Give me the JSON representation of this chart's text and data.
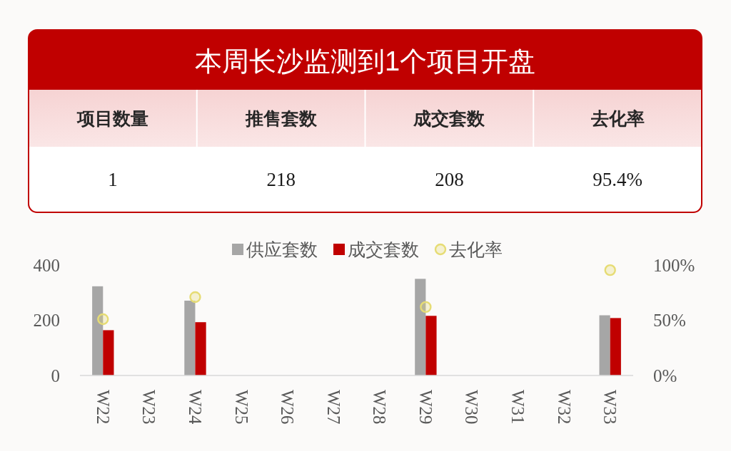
{
  "chart_data": [
    {
      "type": "other",
      "title": "本周长沙监测到1个项目开盘",
      "categories": [
        "项目数量",
        "推售套数",
        "成交套数",
        "去化率"
      ],
      "value_labels": [
        "1",
        "218",
        "208",
        "95.4%"
      ]
    },
    {
      "type": "bar",
      "categories": [
        "W22",
        "W23",
        "W24",
        "W25",
        "W26",
        "W27",
        "W28",
        "W29",
        "W30",
        "W31",
        "W32",
        "W33"
      ],
      "series": [
        {
          "name": "供应套数",
          "color": "#a6a6a6",
          "values": [
            323,
            null,
            271,
            null,
            null,
            null,
            null,
            350,
            null,
            null,
            null,
            218
          ]
        },
        {
          "name": "成交套数",
          "color": "#c00000",
          "values": [
            164,
            null,
            193,
            null,
            null,
            null,
            null,
            216,
            null,
            null,
            null,
            208
          ]
        },
        {
          "name": "去化率",
          "type": "scatter",
          "axis": "y2",
          "marker": "circle",
          "color": "#e6dc74",
          "values": [
            51,
            null,
            71,
            null,
            null,
            null,
            null,
            62,
            null,
            null,
            null,
            95.4
          ]
        }
      ],
      "ylim": [
        0,
        400
      ],
      "yticks": [
        0,
        200,
        400
      ],
      "y2lim": [
        0,
        100
      ],
      "y2ticks": [
        {
          "value": 0,
          "label": "0%"
        },
        {
          "value": 50,
          "label": "50%"
        },
        {
          "value": 100,
          "label": "100%"
        }
      ],
      "legend": "top"
    }
  ]
}
